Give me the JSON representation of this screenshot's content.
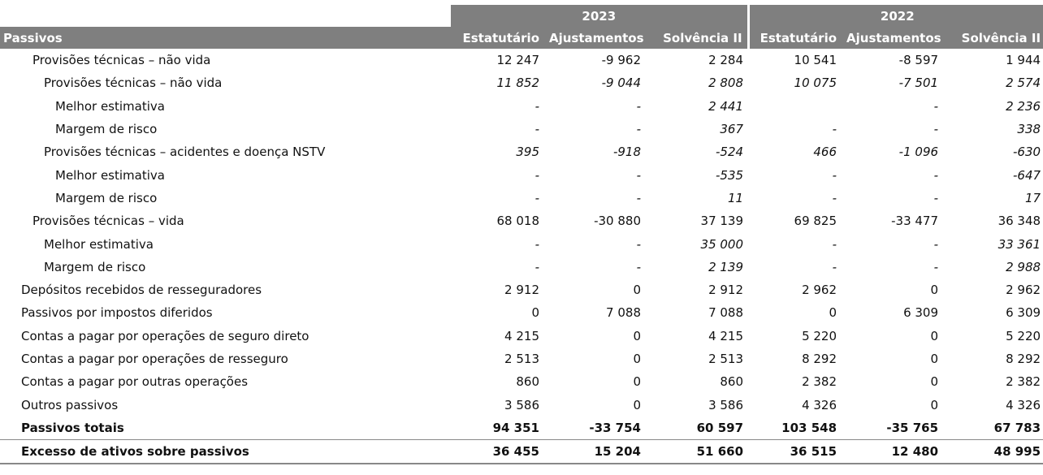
{
  "years": [
    "2023",
    "2022"
  ],
  "columns": {
    "label": "Passivos",
    "statutory": "Estatutário",
    "adjustments": "Ajustamentos",
    "solvency": "Solvência II"
  },
  "rows": [
    {
      "label": "Provisões técnicas – não vida",
      "v": [
        "12 247",
        "-9 962",
        "2 284",
        "10 541",
        "-8 597",
        "1 944"
      ]
    },
    {
      "label": "Provisões técnicas – não vida",
      "v": [
        "11 852",
        "-9 044",
        "2 808",
        "10 075",
        "-7 501",
        "2 574"
      ]
    },
    {
      "label": "Melhor estimativa",
      "v": [
        "-",
        "-",
        "2 441",
        "",
        "-",
        "2 236"
      ]
    },
    {
      "label": "Margem de risco",
      "v": [
        "-",
        "-",
        "367",
        "-",
        "-",
        "338"
      ]
    },
    {
      "label": "Provisões técnicas – acidentes e doença NSTV",
      "v": [
        "395",
        "-918",
        "-524",
        "466",
        "-1 096",
        "-630"
      ]
    },
    {
      "label": "Melhor estimativa",
      "v": [
        "-",
        "-",
        "-535",
        "-",
        "-",
        "-647"
      ]
    },
    {
      "label": "Margem de risco",
      "v": [
        "-",
        "-",
        "11",
        "-",
        "-",
        "17"
      ]
    },
    {
      "label": "Provisões técnicas – vida",
      "v": [
        "68 018",
        "-30 880",
        "37 139",
        "69 825",
        "-33 477",
        "36 348"
      ]
    },
    {
      "label": "Melhor estimativa",
      "v": [
        "-",
        "-",
        "35 000",
        "-",
        "-",
        "33 361"
      ]
    },
    {
      "label": "Margem de risco",
      "v": [
        "-",
        "-",
        "2 139",
        "-",
        "-",
        "2 988"
      ]
    },
    {
      "label": "Depósitos recebidos de resseguradores",
      "v": [
        "2 912",
        "0",
        "2 912",
        "2 962",
        "0",
        "2 962"
      ]
    },
    {
      "label": "Passivos por impostos diferidos",
      "v": [
        "0",
        "7 088",
        "7 088",
        "0",
        "6 309",
        "6 309"
      ]
    },
    {
      "label": "Contas a pagar por operações de seguro direto",
      "v": [
        "4 215",
        "0",
        "4 215",
        "5 220",
        "0",
        "5 220"
      ]
    },
    {
      "label": "Contas a pagar por operações de resseguro",
      "v": [
        "2 513",
        "0",
        "2 513",
        "8 292",
        "0",
        "8 292"
      ]
    },
    {
      "label": "Contas a pagar por outras operações",
      "v": [
        "860",
        "0",
        "860",
        "2 382",
        "0",
        "2 382"
      ]
    },
    {
      "label": "Outros passivos",
      "v": [
        "3 586",
        "0",
        "3 586",
        "4 326",
        "0",
        "4 326"
      ]
    },
    {
      "label": "Passivos totais",
      "v": [
        "94 351",
        "-33 754",
        "60 597",
        "103 548",
        "-35 765",
        "67 783"
      ]
    },
    {
      "label": "Excesso de ativos sobre passivos",
      "v": [
        "36 455",
        "15 204",
        "51 660",
        "36 515",
        "12 480",
        "48 995"
      ]
    }
  ]
}
